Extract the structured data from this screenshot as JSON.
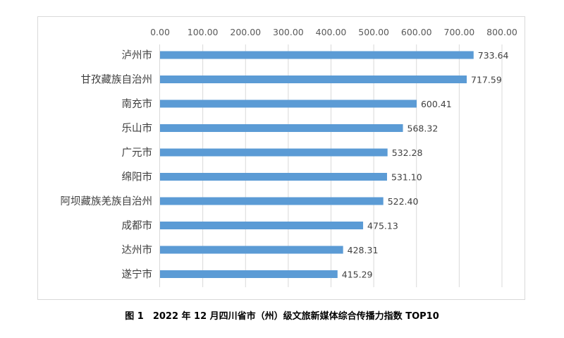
{
  "chart_data": {
    "type": "bar",
    "orientation": "horizontal",
    "title": "",
    "categories": [
      "泸州市",
      "甘孜藏族自治州",
      "南充市",
      "乐山市",
      "广元市",
      "绵阳市",
      "阿坝藏族羌族自治州",
      "成都市",
      "达州市",
      "遂宁市"
    ],
    "values": [
      733.64,
      717.59,
      600.41,
      568.32,
      532.28,
      531.1,
      522.4,
      475.13,
      428.31,
      415.29
    ],
    "value_labels": [
      "733.64",
      "717.59",
      "600.41",
      "568.32",
      "532.28",
      "531.10",
      "522.40",
      "475.13",
      "428.31",
      "415.29"
    ],
    "xticks": [
      "0.00",
      "100.00",
      "200.00",
      "300.00",
      "400.00",
      "500.00",
      "600.00",
      "700.00",
      "800.00"
    ],
    "xlim": [
      0,
      800
    ],
    "xaxis_position": "top",
    "grid": true,
    "bar_color": "#5b9bd5",
    "xlabel": "",
    "ylabel": ""
  },
  "caption": "图 1　2022 年 12 月四川省市（州）级文旅新媒体综合传播力指数 TOP10"
}
